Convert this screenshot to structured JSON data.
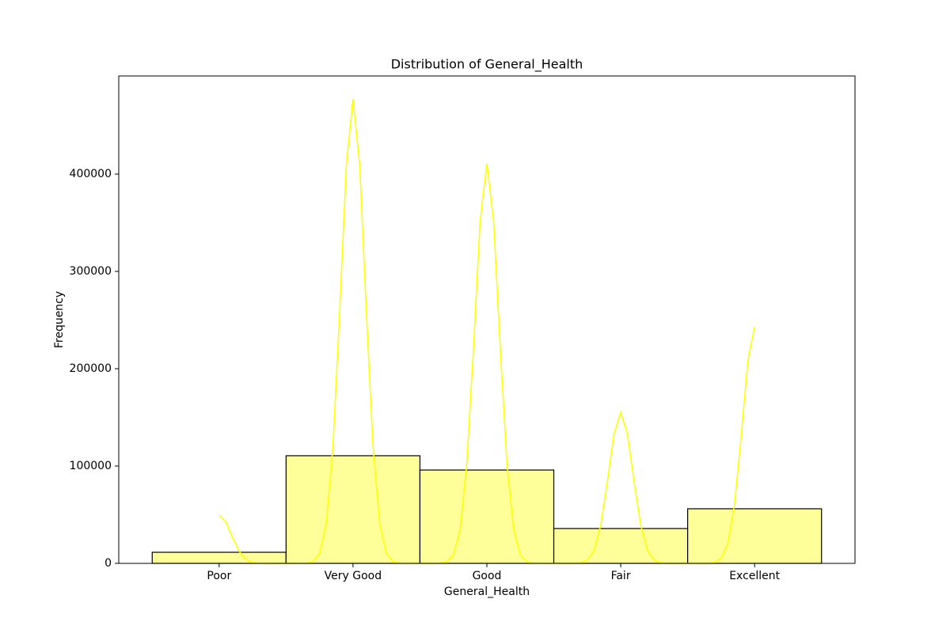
{
  "chart_data": {
    "type": "bar",
    "title": "Distribution of General_Health",
    "x_label": "General_Health",
    "y_label": "Frequency",
    "categories": [
      "Poor",
      "Very Good",
      "Good",
      "Fair",
      "Excellent"
    ],
    "values": [
      11400,
      110600,
      95900,
      35800,
      56100
    ],
    "color": "#ffff99",
    "edge_color": "#000000",
    "ylim": [
      0,
      500800
    ],
    "yticks": [
      0,
      100000,
      200000,
      300000,
      400000
    ],
    "grid": false,
    "kde": {
      "color": "#ffff00",
      "x": [
        0,
        0.05,
        0.1,
        0.15,
        0.2,
        0.25,
        0.3,
        0.35,
        0.5,
        0.65,
        0.7,
        0.75,
        0.8,
        0.85,
        0.9,
        0.95,
        1,
        1.05,
        1.1,
        1.15,
        1.2,
        1.25,
        1.3,
        1.35,
        1.5,
        1.65,
        1.7,
        1.75,
        1.8,
        1.85,
        1.9,
        1.95,
        2,
        2.05,
        2.1,
        2.15,
        2.2,
        2.25,
        2.3,
        2.35,
        2.5,
        2.65,
        2.7,
        2.75,
        2.8,
        2.85,
        2.9,
        2.95,
        3,
        3.05,
        3.1,
        3.15,
        3.2,
        3.25,
        3.3,
        3.35,
        3.5,
        3.65,
        3.7,
        3.75,
        3.8,
        3.85,
        3.9,
        3.95,
        4
      ],
      "values": [
        49600,
        42500,
        26700,
        12400,
        4200,
        1000,
        200,
        0,
        0,
        200,
        1900,
        10000,
        40600,
        118800,
        257200,
        409000,
        477200,
        409000,
        257200,
        118800,
        40600,
        10000,
        1900,
        200,
        0,
        200,
        1600,
        8600,
        34900,
        102200,
        221300,
        351900,
        410600,
        351900,
        221300,
        102200,
        34900,
        8600,
        1600,
        200,
        0,
        100,
        600,
        3300,
        13200,
        38700,
        83700,
        133100,
        155300,
        133100,
        83700,
        38700,
        13200,
        3300,
        600,
        100,
        0,
        100,
        900,
        5100,
        20700,
        60500,
        131000,
        208300,
        243100
      ]
    }
  }
}
